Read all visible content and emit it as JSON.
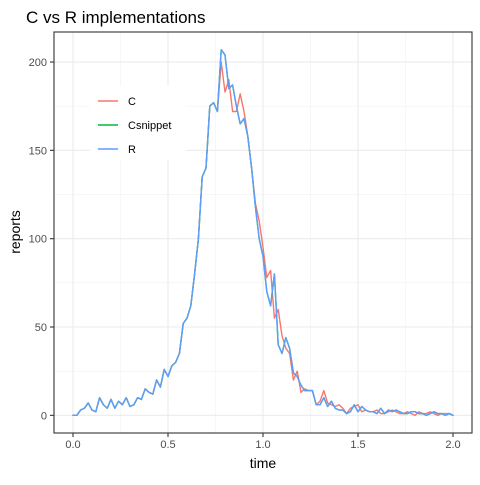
{
  "chart_data": {
    "type": "line",
    "title": "C vs R implementations",
    "xlabel": "time",
    "ylabel": "reports",
    "xlim": [
      -0.1,
      2.1
    ],
    "ylim": [
      -10,
      217
    ],
    "x_ticks": [
      0.0,
      0.5,
      1.0,
      1.5,
      2.0
    ],
    "x_tick_labels": [
      "0.0",
      "0.5",
      "1.0",
      "1.5",
      "2.0"
    ],
    "y_ticks": [
      0,
      50,
      100,
      150,
      200
    ],
    "y_tick_labels": [
      "0",
      "50",
      "100",
      "150",
      "200"
    ],
    "grid": true,
    "legend_placement": "top-left",
    "series": [
      {
        "name": "C",
        "color": "#F8766D",
        "x": [
          0.0,
          0.02,
          0.04,
          0.06,
          0.08,
          0.1,
          0.12,
          0.14,
          0.16,
          0.18,
          0.2,
          0.22,
          0.24,
          0.26,
          0.28,
          0.3,
          0.32,
          0.34,
          0.36,
          0.38,
          0.4,
          0.42,
          0.44,
          0.46,
          0.48,
          0.5,
          0.52,
          0.54,
          0.56,
          0.58,
          0.6,
          0.62,
          0.64,
          0.66,
          0.68,
          0.7,
          0.72,
          0.74,
          0.76,
          0.78,
          0.8,
          0.82,
          0.84,
          0.86,
          0.88,
          0.9,
          0.92,
          0.94,
          0.96,
          0.98,
          1.0,
          1.02,
          1.04,
          1.06,
          1.08,
          1.1,
          1.12,
          1.14,
          1.16,
          1.18,
          1.2,
          1.22,
          1.24,
          1.26,
          1.28,
          1.3,
          1.32,
          1.34,
          1.36,
          1.38,
          1.4,
          1.42,
          1.44,
          1.46,
          1.48,
          1.5,
          1.52,
          1.54,
          1.56,
          1.58,
          1.6,
          1.62,
          1.64,
          1.66,
          1.68,
          1.7,
          1.72,
          1.74,
          1.76,
          1.78,
          1.8,
          1.82,
          1.84,
          1.86,
          1.88,
          1.9,
          1.92,
          1.94,
          1.96,
          1.98,
          2.0
        ],
        "values": [
          0,
          0,
          3,
          4,
          7,
          3,
          2,
          10,
          6,
          4,
          9,
          4,
          8,
          6,
          10,
          5,
          6,
          10,
          9,
          15,
          13,
          12,
          20,
          16,
          26,
          22,
          28,
          30,
          35,
          52,
          55,
          62,
          80,
          100,
          135,
          140,
          175,
          177,
          172,
          200,
          183,
          190,
          172,
          172,
          182,
          172,
          158,
          140,
          120,
          110,
          95,
          78,
          82,
          55,
          60,
          45,
          38,
          35,
          20,
          25,
          13,
          15,
          14,
          14,
          6,
          8,
          14,
          7,
          6,
          5,
          6,
          4,
          1,
          4,
          5,
          6,
          2,
          3,
          2,
          2,
          3,
          1,
          1,
          2,
          3,
          2,
          1,
          1,
          2,
          1,
          0,
          2,
          1,
          1,
          2,
          1,
          0,
          1,
          1,
          1,
          0
        ]
      },
      {
        "name": "Csnippet",
        "color": "#00BA38",
        "x": [
          0.0,
          0.02,
          0.04,
          0.06,
          0.08,
          0.1,
          0.12,
          0.14,
          0.16,
          0.18,
          0.2,
          0.22,
          0.24,
          0.26,
          0.28,
          0.3,
          0.32,
          0.34,
          0.36,
          0.38,
          0.4,
          0.42,
          0.44,
          0.46,
          0.48,
          0.5,
          0.52,
          0.54,
          0.56,
          0.58,
          0.6,
          0.62,
          0.64,
          0.66,
          0.68,
          0.7,
          0.72,
          0.74,
          0.76,
          0.78,
          0.8,
          0.82,
          0.84,
          0.86,
          0.88,
          0.9,
          0.92,
          0.94,
          0.96,
          0.98,
          1.0,
          1.02,
          1.04,
          1.06,
          1.08,
          1.1,
          1.12,
          1.14,
          1.16,
          1.18,
          1.2,
          1.22,
          1.24,
          1.26,
          1.28,
          1.3,
          1.32,
          1.34,
          1.36,
          1.38,
          1.4,
          1.42,
          1.44,
          1.46,
          1.48,
          1.5,
          1.52,
          1.54,
          1.56,
          1.58,
          1.6,
          1.62,
          1.64,
          1.66,
          1.68,
          1.7,
          1.72,
          1.74,
          1.76,
          1.78,
          1.8,
          1.82,
          1.84,
          1.86,
          1.88,
          1.9,
          1.92,
          1.94,
          1.96,
          1.98,
          2.0
        ],
        "values": [
          0,
          0,
          3,
          4,
          7,
          3,
          2,
          10,
          6,
          4,
          9,
          4,
          8,
          6,
          10,
          5,
          6,
          10,
          9,
          15,
          13,
          12,
          20,
          16,
          26,
          22,
          28,
          30,
          35,
          52,
          55,
          62,
          80,
          100,
          135,
          140,
          175,
          177,
          172,
          207,
          204,
          185,
          187,
          175,
          165,
          168,
          158,
          140,
          118,
          100,
          90,
          70,
          62,
          80,
          40,
          35,
          44,
          38,
          24,
          22,
          17,
          14,
          14,
          14,
          6,
          6,
          10,
          5,
          8,
          4,
          3,
          3,
          1,
          2,
          6,
          2,
          5,
          3,
          2,
          2,
          1,
          4,
          1,
          3,
          2,
          3,
          2,
          1,
          1,
          2,
          2,
          1,
          1,
          0,
          1,
          2,
          1,
          1,
          0,
          1,
          0
        ]
      },
      {
        "name": "R",
        "color": "#619CFF",
        "x": [
          0.0,
          0.02,
          0.04,
          0.06,
          0.08,
          0.1,
          0.12,
          0.14,
          0.16,
          0.18,
          0.2,
          0.22,
          0.24,
          0.26,
          0.28,
          0.3,
          0.32,
          0.34,
          0.36,
          0.38,
          0.4,
          0.42,
          0.44,
          0.46,
          0.48,
          0.5,
          0.52,
          0.54,
          0.56,
          0.58,
          0.6,
          0.62,
          0.64,
          0.66,
          0.68,
          0.7,
          0.72,
          0.74,
          0.76,
          0.78,
          0.8,
          0.82,
          0.84,
          0.86,
          0.88,
          0.9,
          0.92,
          0.94,
          0.96,
          0.98,
          1.0,
          1.02,
          1.04,
          1.06,
          1.08,
          1.1,
          1.12,
          1.14,
          1.16,
          1.18,
          1.2,
          1.22,
          1.24,
          1.26,
          1.28,
          1.3,
          1.32,
          1.34,
          1.36,
          1.38,
          1.4,
          1.42,
          1.44,
          1.46,
          1.48,
          1.5,
          1.52,
          1.54,
          1.56,
          1.58,
          1.6,
          1.62,
          1.64,
          1.66,
          1.68,
          1.7,
          1.72,
          1.74,
          1.76,
          1.78,
          1.8,
          1.82,
          1.84,
          1.86,
          1.88,
          1.9,
          1.92,
          1.94,
          1.96,
          1.98,
          2.0
        ],
        "values": [
          0,
          0,
          3,
          4,
          7,
          3,
          2,
          10,
          6,
          4,
          9,
          4,
          8,
          6,
          10,
          5,
          6,
          10,
          9,
          15,
          13,
          12,
          20,
          16,
          26,
          22,
          28,
          30,
          35,
          52,
          55,
          62,
          80,
          100,
          135,
          140,
          175,
          177,
          172,
          207,
          204,
          185,
          187,
          175,
          165,
          168,
          158,
          140,
          118,
          100,
          90,
          70,
          62,
          80,
          40,
          35,
          44,
          38,
          24,
          22,
          17,
          14,
          14,
          14,
          6,
          6,
          10,
          5,
          8,
          4,
          3,
          3,
          1,
          2,
          6,
          2,
          5,
          3,
          2,
          2,
          1,
          4,
          1,
          3,
          2,
          3,
          2,
          1,
          1,
          2,
          2,
          1,
          1,
          0,
          1,
          2,
          1,
          1,
          0,
          1,
          0
        ]
      }
    ]
  }
}
